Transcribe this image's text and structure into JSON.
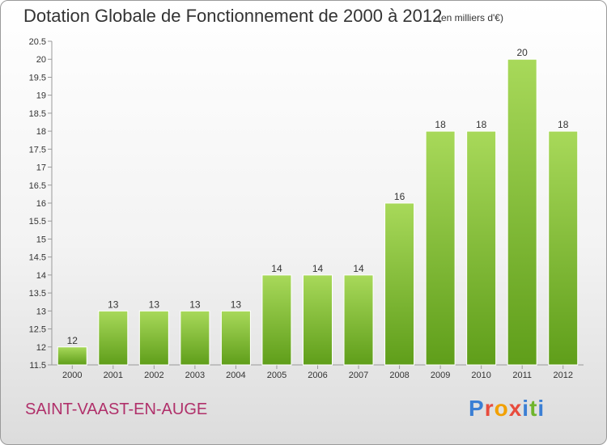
{
  "header": {
    "title": "Dotation Globale de Fonctionnement de 2000 à 2012",
    "subtitle": "(en milliers d'€)"
  },
  "footer": {
    "commune": "SAINT-VAAST-EN-AUGE",
    "logo_text": "Proxiti"
  },
  "colors": {
    "bar_light": "#a8d95a",
    "bar_dark": "#5f9e1a",
    "commune": "#b0306a"
  },
  "chart_data": {
    "type": "bar",
    "title": "Dotation Globale de Fonctionnement de 2000 à 2012",
    "subtitle": "(en milliers d'€)",
    "categories": [
      "2000",
      "2001",
      "2002",
      "2003",
      "2004",
      "2005",
      "2006",
      "2007",
      "2008",
      "2009",
      "2010",
      "2011",
      "2012"
    ],
    "values": [
      12,
      13,
      13,
      13,
      13,
      14,
      14,
      14,
      16,
      18,
      18,
      20,
      18
    ],
    "data_labels": [
      "12",
      "13",
      "13",
      "13",
      "13",
      "14",
      "14",
      "14",
      "16",
      "18",
      "18",
      "20",
      "18"
    ],
    "ylim": [
      11.5,
      20.5
    ],
    "yticks": [
      11.5,
      12,
      12.5,
      13,
      13.5,
      14,
      14.5,
      15,
      15.5,
      16,
      16.5,
      17,
      17.5,
      18,
      18.5,
      19,
      19.5,
      20,
      20.5
    ],
    "ytick_labels": [
      "11.5",
      "12",
      "12.5",
      "13",
      "13.5",
      "14",
      "14.5",
      "15",
      "15.5",
      "16",
      "16.5",
      "17",
      "17.5",
      "18",
      "18.5",
      "19",
      "19.5",
      "20",
      "20.5"
    ],
    "grid": false,
    "legend": "none"
  }
}
